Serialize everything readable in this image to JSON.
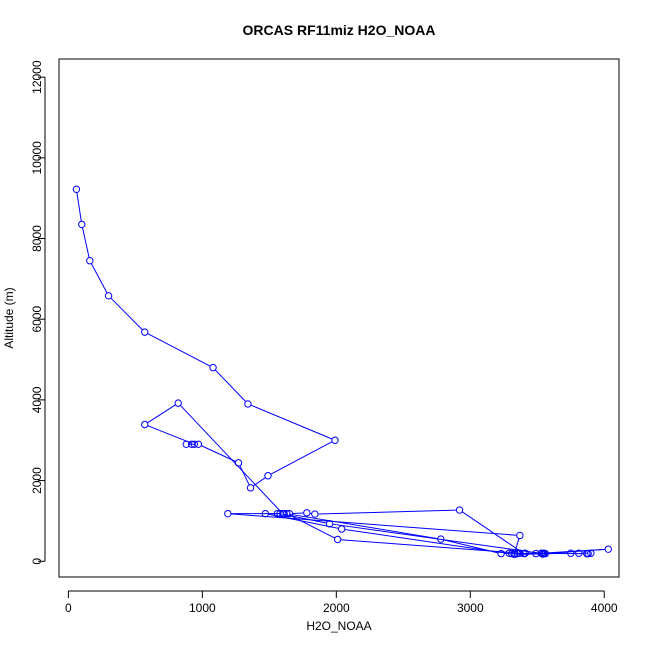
{
  "chart_data": {
    "type": "line",
    "title": "ORCAS RF11miz H2O_NOAA",
    "xlabel": "H2O_NOAA",
    "ylabel": "Altitude (m)",
    "xlim": [
      -70,
      4110
    ],
    "ylim": [
      -390,
      12450
    ],
    "x_ticks": [
      0,
      1000,
      2000,
      3000,
      4000
    ],
    "y_ticks": [
      0,
      2000,
      4000,
      6000,
      8000,
      10000,
      12000
    ],
    "series": [
      {
        "color": "#0000ff",
        "marker": "circle-open",
        "x": [
          60,
          100,
          160,
          300,
          570,
          1080,
          1340,
          1990,
          1490,
          1360,
          1270,
          970,
          880,
          920,
          940,
          570,
          820,
          1600,
          1190,
          3370,
          3330,
          3540,
          3290,
          3230,
          2780,
          1630,
          2010,
          3370,
          3410,
          3550,
          3530,
          3870,
          3880,
          3900,
          3810,
          3750,
          3330,
          2040,
          1470,
          1610,
          1560,
          1580,
          1950,
          3540,
          3490,
          4030,
          3560,
          3310,
          3550,
          3350,
          3400,
          2920,
          1840,
          1780,
          1650
        ],
        "y": [
          9220,
          8350,
          7450,
          6580,
          5680,
          4800,
          3900,
          3000,
          2120,
          1820,
          2440,
          2900,
          2900,
          2900,
          2900,
          3390,
          3920,
          1180,
          1180,
          640,
          200,
          180,
          200,
          190,
          550,
          1180,
          540,
          200,
          200,
          200,
          200,
          190,
          190,
          200,
          200,
          200,
          170,
          800,
          1180,
          1180,
          1180,
          1180,
          930,
          190,
          190,
          300,
          190,
          190,
          190,
          190,
          190,
          1270,
          1170,
          1200,
          1180
        ]
      }
    ]
  }
}
